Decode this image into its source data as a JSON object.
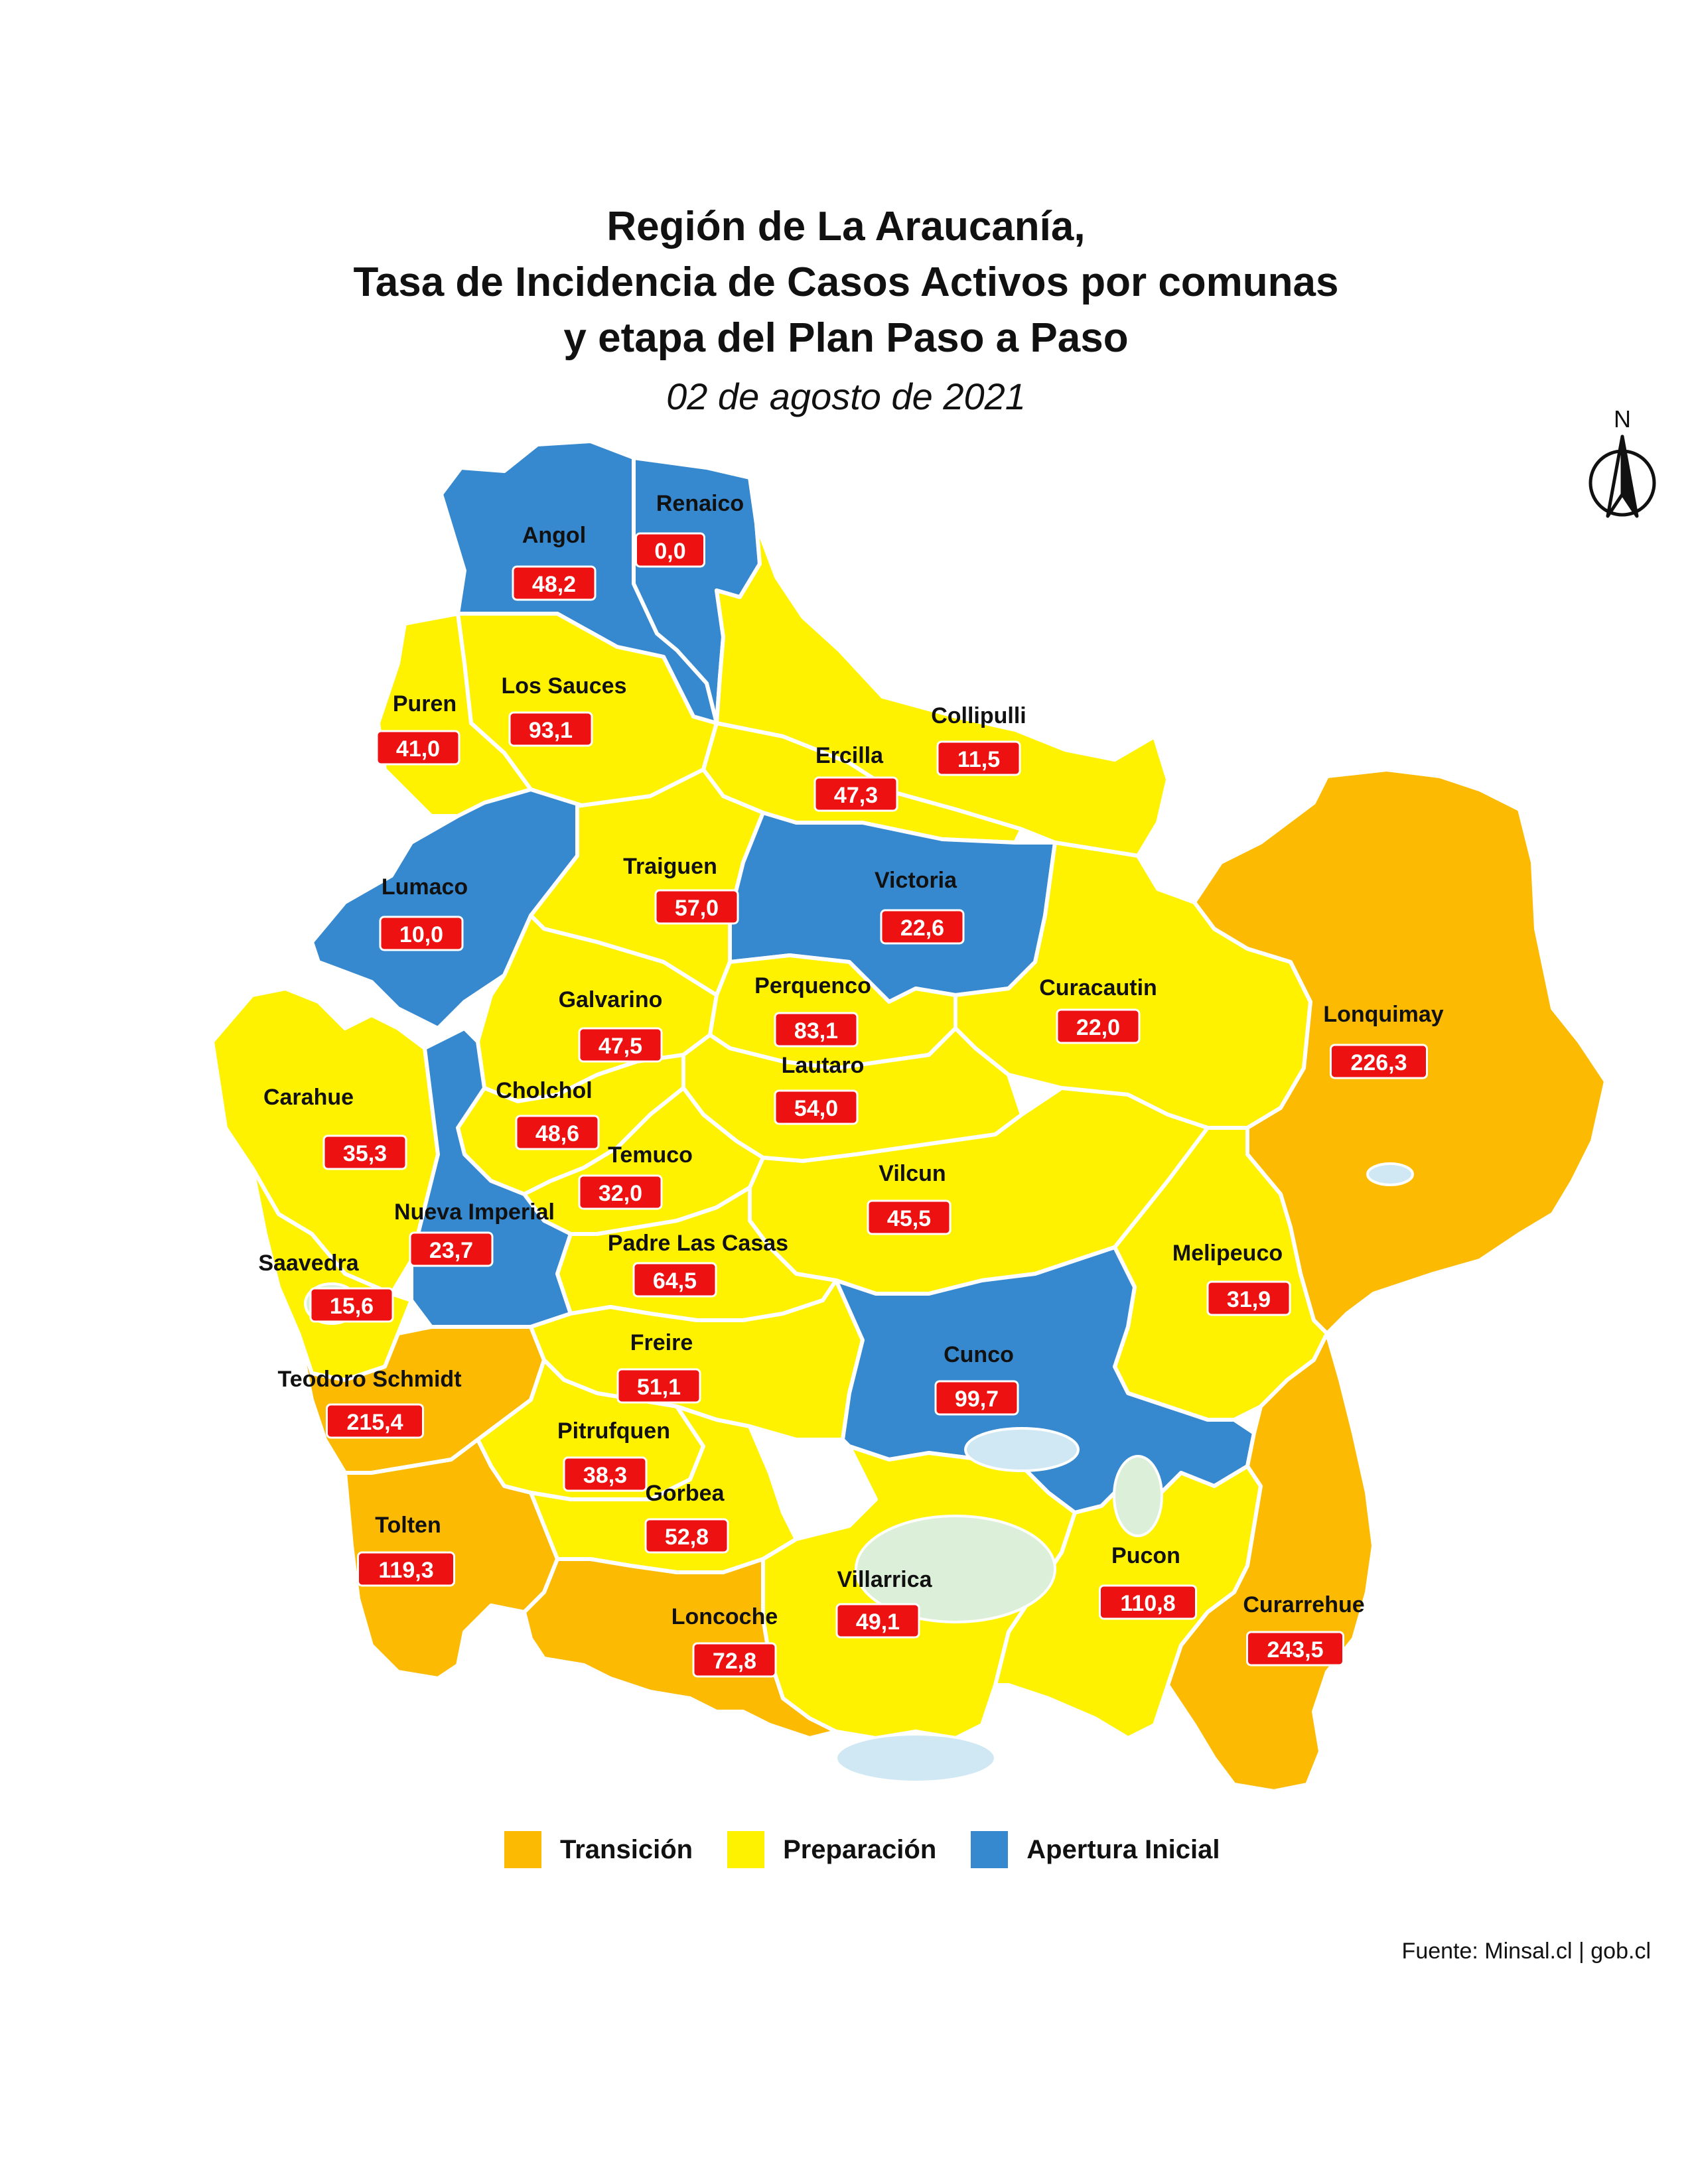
{
  "title": {
    "lines": [
      "Región de La Araucanía,",
      "Tasa de Incidencia de Casos Activos por comunas",
      "y etapa del Plan Paso a Paso"
    ],
    "subtitle": "02 de agosto de 2021"
  },
  "colors": {
    "transicion": "#fcba03",
    "preparacion": "#fff200",
    "apertura": "#3688cf",
    "value_box": "#ee1111"
  },
  "legend": [
    {
      "key": "transicion",
      "label": "Transición",
      "color": "#fcba03"
    },
    {
      "key": "preparacion",
      "label": "Preparación",
      "color": "#fff200"
    },
    {
      "key": "apertura",
      "label": "Apertura Inicial",
      "color": "#3688cf"
    }
  ],
  "north_label": "N",
  "source": "Fuente: Minsal.cl | gob.cl",
  "communes": [
    {
      "name": "Renaico",
      "value": "0,0",
      "stage": "apertura"
    },
    {
      "name": "Angol",
      "value": "48,2",
      "stage": "apertura"
    },
    {
      "name": "Los Sauces",
      "value": "93,1",
      "stage": "preparacion"
    },
    {
      "name": "Puren",
      "value": "41,0",
      "stage": "preparacion"
    },
    {
      "name": "Collipulli",
      "value": "11,5",
      "stage": "preparacion"
    },
    {
      "name": "Ercilla",
      "value": "47,3",
      "stage": "preparacion"
    },
    {
      "name": "Lumaco",
      "value": "10,0",
      "stage": "apertura"
    },
    {
      "name": "Traiguen",
      "value": "57,0",
      "stage": "preparacion"
    },
    {
      "name": "Victoria",
      "value": "22,6",
      "stage": "apertura"
    },
    {
      "name": "Curacautin",
      "value": "22,0",
      "stage": "preparacion"
    },
    {
      "name": "Lonquimay",
      "value": "226,3",
      "stage": "transicion"
    },
    {
      "name": "Galvarino",
      "value": "47,5",
      "stage": "preparacion"
    },
    {
      "name": "Perquenco",
      "value": "83,1",
      "stage": "preparacion"
    },
    {
      "name": "Lautaro",
      "value": "54,0",
      "stage": "preparacion"
    },
    {
      "name": "Carahue",
      "value": "35,3",
      "stage": "preparacion"
    },
    {
      "name": "Cholchol",
      "value": "48,6",
      "stage": "preparacion"
    },
    {
      "name": "Temuco",
      "value": "32,0",
      "stage": "preparacion"
    },
    {
      "name": "Vilcun",
      "value": "45,5",
      "stage": "preparacion"
    },
    {
      "name": "Nueva Imperial",
      "value": "23,7",
      "stage": "apertura"
    },
    {
      "name": "Padre Las Casas",
      "value": "64,5",
      "stage": "preparacion"
    },
    {
      "name": "Melipeuco",
      "value": "31,9",
      "stage": "preparacion"
    },
    {
      "name": "Saavedra",
      "value": "15,6",
      "stage": "preparacion"
    },
    {
      "name": "Teodoro Schmidt",
      "value": "215,4",
      "stage": "transicion"
    },
    {
      "name": "Freire",
      "value": "51,1",
      "stage": "preparacion"
    },
    {
      "name": "Cunco",
      "value": "99,7",
      "stage": "apertura"
    },
    {
      "name": "Pitrufquen",
      "value": "38,3",
      "stage": "preparacion"
    },
    {
      "name": "Gorbea",
      "value": "52,8",
      "stage": "preparacion"
    },
    {
      "name": "Tolten",
      "value": "119,3",
      "stage": "transicion"
    },
    {
      "name": "Villarrica",
      "value": "49,1",
      "stage": "preparacion"
    },
    {
      "name": "Pucon",
      "value": "110,8",
      "stage": "preparacion"
    },
    {
      "name": "Curarrehue",
      "value": "243,5",
      "stage": "transicion"
    },
    {
      "name": "Loncoche",
      "value": "72,8",
      "stage": "transicion"
    }
  ]
}
